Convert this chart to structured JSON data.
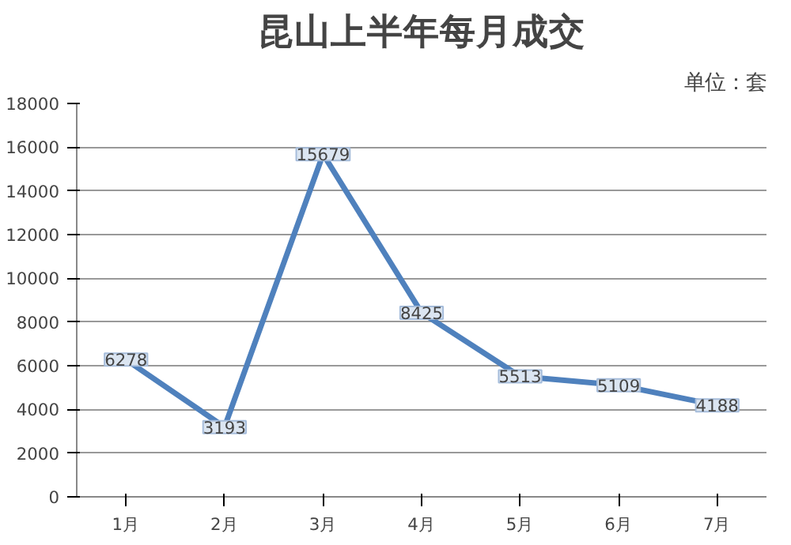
{
  "chart_data": {
    "type": "line",
    "title": "昆山上半年每月成交",
    "annotations": [
      "单位：套"
    ],
    "categories": [
      "1月",
      "2月",
      "3月",
      "4月",
      "5月",
      "6月",
      "7月"
    ],
    "series": [
      {
        "color": "#4f81bd",
        "values": [
          6278,
          3193,
          15679,
          8425,
          5513,
          5109,
          4188
        ]
      }
    ],
    "ylim": [
      0,
      18000
    ],
    "yticks": [
      0,
      2000,
      4000,
      6000,
      8000,
      10000,
      12000,
      14000,
      16000,
      18000
    ],
    "grid": "y",
    "data_labels": true,
    "marker": "none"
  }
}
